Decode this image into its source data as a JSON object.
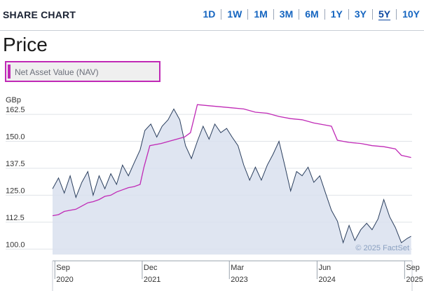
{
  "header": {
    "title": "SHARE CHART",
    "ranges": [
      "1D",
      "1W",
      "1M",
      "3M",
      "6M",
      "1Y",
      "3Y",
      "5Y",
      "10Y"
    ],
    "active_range": "5Y"
  },
  "price_title": "Price",
  "legend": {
    "label": "Net Asset Value (NAV)",
    "color": "#c02ab6"
  },
  "chart_data": {
    "type": "line",
    "ylabel": "GBp",
    "yticks": [
      "162.5",
      "150.0",
      "137.5",
      "125.0",
      "112.5",
      "100.0"
    ],
    "ylim": [
      97.5,
      170
    ],
    "xlim": [
      "2020-08-20",
      "2025-10-10"
    ],
    "xticks": [
      {
        "month": "Sep",
        "year": "2020",
        "date": "2020-09-01"
      },
      {
        "month": "Dec",
        "year": "2021",
        "date": "2021-12-01"
      },
      {
        "month": "Mar",
        "year": "2023",
        "date": "2023-03-01"
      },
      {
        "month": "Jun",
        "year": "2024",
        "date": "2024-06-01"
      },
      {
        "month": "Sep",
        "year": "2025",
        "date": "2025-09-01"
      }
    ],
    "grid": "horizontal",
    "watermark": "© 2025 FactSet",
    "series": [
      {
        "role": "price",
        "color": "#2b3f5e",
        "fill": "#d9e1ee",
        "points": [
          [
            "2020-08-20",
            128
          ],
          [
            "2020-09-20",
            133
          ],
          [
            "2020-10-20",
            126
          ],
          [
            "2020-11-20",
            134
          ],
          [
            "2020-12-20",
            124
          ],
          [
            "2021-01-20",
            131
          ],
          [
            "2021-02-20",
            136
          ],
          [
            "2021-03-20",
            125
          ],
          [
            "2021-04-20",
            134
          ],
          [
            "2021-05-20",
            128
          ],
          [
            "2021-06-20",
            135
          ],
          [
            "2021-07-20",
            130
          ],
          [
            "2021-08-20",
            139
          ],
          [
            "2021-09-20",
            134
          ],
          [
            "2021-10-20",
            140
          ],
          [
            "2021-11-20",
            146
          ],
          [
            "2021-12-15",
            155
          ],
          [
            "2022-01-15",
            158
          ],
          [
            "2022-02-15",
            152
          ],
          [
            "2022-03-15",
            157
          ],
          [
            "2022-04-15",
            160
          ],
          [
            "2022-05-15",
            165
          ],
          [
            "2022-06-15",
            160
          ],
          [
            "2022-07-15",
            148
          ],
          [
            "2022-08-15",
            142
          ],
          [
            "2022-09-15",
            150
          ],
          [
            "2022-10-15",
            157
          ],
          [
            "2022-11-15",
            151
          ],
          [
            "2022-12-15",
            158
          ],
          [
            "2023-01-15",
            154
          ],
          [
            "2023-02-15",
            156
          ],
          [
            "2023-03-15",
            152
          ],
          [
            "2023-04-15",
            148
          ],
          [
            "2023-05-15",
            139
          ],
          [
            "2023-06-15",
            132
          ],
          [
            "2023-07-15",
            138
          ],
          [
            "2023-08-15",
            132
          ],
          [
            "2023-09-15",
            139
          ],
          [
            "2023-10-15",
            144
          ],
          [
            "2023-11-15",
            150
          ],
          [
            "2023-12-15",
            139
          ],
          [
            "2024-01-15",
            127
          ],
          [
            "2024-02-15",
            136
          ],
          [
            "2024-03-15",
            134
          ],
          [
            "2024-04-15",
            138
          ],
          [
            "2024-05-15",
            131
          ],
          [
            "2024-06-15",
            134
          ],
          [
            "2024-07-15",
            126
          ],
          [
            "2024-08-15",
            118
          ],
          [
            "2024-09-15",
            113
          ],
          [
            "2024-10-15",
            103
          ],
          [
            "2024-11-15",
            111
          ],
          [
            "2024-12-15",
            104
          ],
          [
            "2025-01-15",
            109
          ],
          [
            "2025-02-15",
            112
          ],
          [
            "2025-03-15",
            109
          ],
          [
            "2025-04-15",
            114
          ],
          [
            "2025-05-15",
            123
          ],
          [
            "2025-06-15",
            115
          ],
          [
            "2025-07-15",
            110
          ],
          [
            "2025-08-15",
            103
          ],
          [
            "2025-09-15",
            105
          ],
          [
            "2025-10-05",
            106
          ]
        ]
      },
      {
        "role": "nav",
        "color": "#c02ab6",
        "points": [
          [
            "2020-08-20",
            115.5
          ],
          [
            "2020-09-20",
            116.0
          ],
          [
            "2020-10-20",
            117.5
          ],
          [
            "2020-11-20",
            118.0
          ],
          [
            "2020-12-20",
            118.5
          ],
          [
            "2021-01-20",
            120.0
          ],
          [
            "2021-02-20",
            121.5
          ],
          [
            "2021-03-20",
            122.0
          ],
          [
            "2021-04-20",
            123.0
          ],
          [
            "2021-05-20",
            124.5
          ],
          [
            "2021-06-20",
            125.0
          ],
          [
            "2021-07-20",
            126.5
          ],
          [
            "2021-08-20",
            127.5
          ],
          [
            "2021-09-20",
            128.5
          ],
          [
            "2021-10-20",
            129.0
          ],
          [
            "2021-11-20",
            130.0
          ],
          [
            "2021-12-10",
            138.0
          ],
          [
            "2022-01-10",
            148.0
          ],
          [
            "2022-03-10",
            149.0
          ],
          [
            "2022-05-10",
            150.5
          ],
          [
            "2022-07-10",
            152.0
          ],
          [
            "2022-08-10",
            154.0
          ],
          [
            "2022-09-15",
            167.0
          ],
          [
            "2022-11-15",
            166.5
          ],
          [
            "2023-01-15",
            166.0
          ],
          [
            "2023-03-15",
            165.5
          ],
          [
            "2023-05-15",
            165.0
          ],
          [
            "2023-07-15",
            163.5
          ],
          [
            "2023-09-15",
            163.0
          ],
          [
            "2023-11-15",
            161.5
          ],
          [
            "2024-01-15",
            160.5
          ],
          [
            "2024-03-15",
            160.0
          ],
          [
            "2024-05-15",
            158.5
          ],
          [
            "2024-07-15",
            157.5
          ],
          [
            "2024-08-15",
            157.0
          ],
          [
            "2024-09-15",
            150.5
          ],
          [
            "2024-11-15",
            149.5
          ],
          [
            "2025-01-15",
            149.0
          ],
          [
            "2025-03-15",
            148.0
          ],
          [
            "2025-05-15",
            147.5
          ],
          [
            "2025-07-15",
            146.5
          ],
          [
            "2025-08-15",
            143.5
          ],
          [
            "2025-10-05",
            142.5
          ]
        ]
      }
    ]
  }
}
